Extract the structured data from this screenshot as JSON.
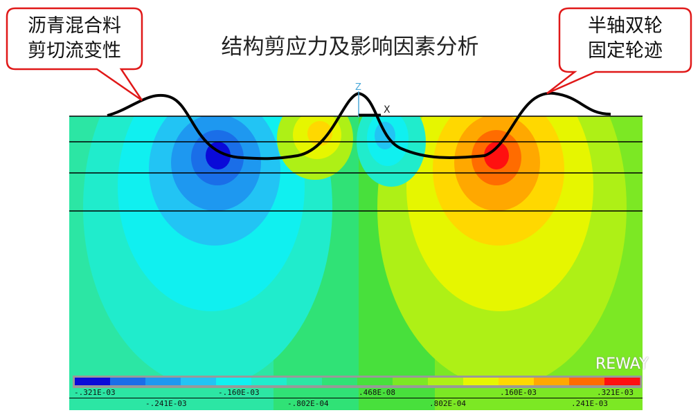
{
  "title": "结构剪应力及影响因素分析",
  "callout_left": {
    "line1": "沥青混合料",
    "line2": "剪切流变性"
  },
  "callout_right": {
    "line1": "半轴双轮",
    "line2": "固定轮迹"
  },
  "axes": {
    "z": "Z",
    "x": "X"
  },
  "legend": {
    "colors": [
      "#0a0ad8",
      "#1a6ee8",
      "#1e98f0",
      "#22c4f4",
      "#10f0f0",
      "#20eccc",
      "#2ce6a4",
      "#30e276",
      "#48e03c",
      "#7ce824",
      "#aef016",
      "#e6f600",
      "#ffd800",
      "#ffa800",
      "#ff6c00",
      "#ff1010"
    ],
    "top_labels": [
      "-.321E-03",
      "-.160E-03",
      ".468E-08",
      ".160E-03",
      ".321E-03"
    ],
    "bottom_labels": [
      "-.241E-03",
      "-.802E-04",
      ".802E-04",
      ".241E-03"
    ]
  },
  "watermark": "REWAY"
}
